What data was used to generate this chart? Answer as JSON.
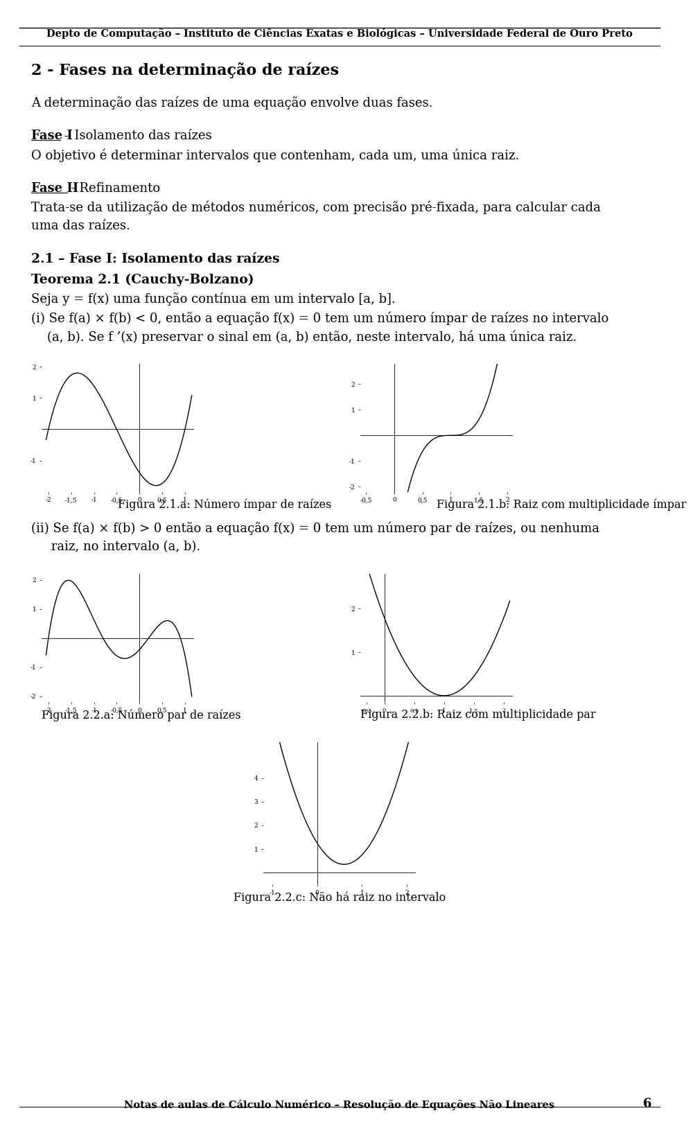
{
  "header": "Depto de Computação – Instituto de Ciências Exatas e Biológicas – Universidade Federal de Ouro Preto",
  "footer_text": "Notas de aulas de Cálculo Numérico – Resolução de Equações Não Lineares",
  "footer_num": "6",
  "title": "2 - Fases na determinação de raízes",
  "line1": "A determinação das raízes de uma equação envolve duas fases.",
  "fase1_bold": "Fase I",
  "fase1_rest": " – Isolamento das raízes",
  "fase1_body": "O objetivo é determinar intervalos que contenham, cada um, uma única raiz.",
  "fase2_bold": "Fase II",
  "fase2_rest": " - Refinamento",
  "fase2_body1": "Trata-se da utilização de métodos numéricos, com precisão pré-fixada, para calcular cada",
  "fase2_body2": "uma das raízes.",
  "sec21_bold": "2.1 – Fase I: Isolamento das raízes",
  "teo21_bold": "Teorema 2.1 (Cauchy-Bolzano)",
  "teo21_line1": "Seja y = f(x) uma função contínua em um intervalo [a, b].",
  "teo21_line2": "(i) Se f(a) × f(b) < 0, então a equação f(x) = 0 tem um número ímpar de raízes no intervalo",
  "teo21_line3": "    (a, b). Se f ’(x) preservar o sinal em (a, b) então, neste intervalo, há uma única raiz.",
  "fig21a_cap": "Figura 2.1.a: Número ímpar de raízes",
  "fig21b_cap": "Figura 2.1.b: Raiz com multiplicidade ímpar",
  "teo21_ii1": "(ii) Se f(a) × f(b) > 0 então a equação f(x) = 0 tem um número par de raízes, ou nenhuma",
  "teo21_ii2": "     raiz, no intervalo (a, b).",
  "fig22a_cap": "Figura 2.2.a: Número par de raízes",
  "fig22b_cap": "Figura 2.2.b: Raiz com multiplicidade par",
  "fig22c_cap": "Figura 2.2.c: Não há raiz no intervalo",
  "bg": "#ffffff",
  "fg": "#000000"
}
